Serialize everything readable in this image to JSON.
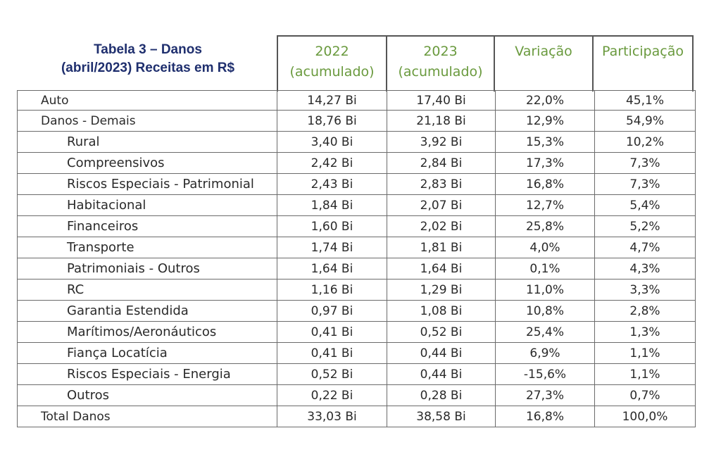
{
  "title": {
    "line1": "Tabela 3 – Danos",
    "line2": "(abril/2023) Receitas em R$"
  },
  "columns": [
    {
      "line1": "2022",
      "line2": "(acumulado)"
    },
    {
      "line1": "2023",
      "line2": "(acumulado)"
    },
    {
      "line1": "Variação",
      "line2": ""
    },
    {
      "line1": "Participação",
      "line2": ""
    }
  ],
  "header_color": "#6a9a3e",
  "title_color": "#1f2f6e",
  "rows": [
    {
      "label": "Auto",
      "v2022": "14,27 Bi",
      "v2023": "17,40 Bi",
      "variacao": "22,0%",
      "participacao": "45,1%",
      "indent": false
    },
    {
      "label": "Danos - Demais",
      "v2022": "18,76 Bi",
      "v2023": "21,18 Bi",
      "variacao": "12,9%",
      "participacao": "54,9%",
      "indent": false
    },
    {
      "label": "Rural",
      "v2022": "3,40 Bi",
      "v2023": "3,92 Bi",
      "variacao": "15,3%",
      "participacao": "10,2%",
      "indent": true
    },
    {
      "label": "Compreensivos",
      "v2022": "2,42 Bi",
      "v2023": "2,84 Bi",
      "variacao": "17,3%",
      "participacao": "7,3%",
      "indent": true
    },
    {
      "label": "Riscos Especiais - Patrimonial",
      "v2022": "2,43 Bi",
      "v2023": "2,83 Bi",
      "variacao": "16,8%",
      "participacao": "7,3%",
      "indent": true
    },
    {
      "label": "Habitacional",
      "v2022": "1,84 Bi",
      "v2023": "2,07 Bi",
      "variacao": "12,7%",
      "participacao": "5,4%",
      "indent": true
    },
    {
      "label": "Financeiros",
      "v2022": "1,60 Bi",
      "v2023": "2,02 Bi",
      "variacao": "25,8%",
      "participacao": "5,2%",
      "indent": true
    },
    {
      "label": "Transporte",
      "v2022": "1,74 Bi",
      "v2023": "1,81 Bi",
      "variacao": "4,0%",
      "participacao": "4,7%",
      "indent": true
    },
    {
      "label": "Patrimoniais - Outros",
      "v2022": "1,64 Bi",
      "v2023": "1,64 Bi",
      "variacao": "0,1%",
      "participacao": "4,3%",
      "indent": true
    },
    {
      "label": "RC",
      "v2022": "1,16 Bi",
      "v2023": "1,29 Bi",
      "variacao": "11,0%",
      "participacao": "3,3%",
      "indent": true
    },
    {
      "label": "Garantia Estendida",
      "v2022": "0,97 Bi",
      "v2023": "1,08 Bi",
      "variacao": "10,8%",
      "participacao": "2,8%",
      "indent": true
    },
    {
      "label": "Marítimos/Aeronáuticos",
      "v2022": "0,41 Bi",
      "v2023": "0,52 Bi",
      "variacao": "25,4%",
      "participacao": "1,3%",
      "indent": true
    },
    {
      "label": "Fiança Locatícia",
      "v2022": "0,41 Bi",
      "v2023": "0,44 Bi",
      "variacao": "6,9%",
      "participacao": "1,1%",
      "indent": true
    },
    {
      "label": "Riscos Especiais - Energia",
      "v2022": "0,52 Bi",
      "v2023": "0,44 Bi",
      "variacao": "-15,6%",
      "participacao": "1,1%",
      "indent": true
    },
    {
      "label": "Outros",
      "v2022": "0,22 Bi",
      "v2023": "0,28 Bi",
      "variacao": "27,3%",
      "participacao": "0,7%",
      "indent": true
    },
    {
      "label": "Total Danos",
      "v2022": "33,03 Bi",
      "v2023": "38,58 Bi",
      "variacao": "16,8%",
      "participacao": "100,0%",
      "indent": false
    }
  ]
}
